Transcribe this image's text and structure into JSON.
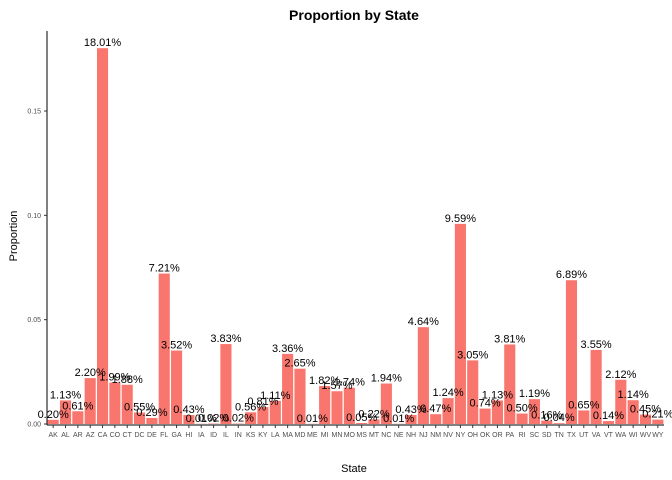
{
  "chart_data": {
    "type": "bar",
    "title": "Proportion by State",
    "xlabel": "State",
    "ylabel": "Proportion",
    "ylim": [
      0,
      0.185
    ],
    "yticks": [
      "0.00",
      "0.05",
      "0.10",
      "0.15"
    ],
    "ytick_values": [
      0,
      0.05,
      0.1,
      0.15
    ],
    "grid": false,
    "bar_color": "#F8766D",
    "categories": [
      "AK",
      "AL",
      "AR",
      "AZ",
      "CA",
      "CO",
      "CT",
      "DC",
      "DE",
      "FL",
      "GA",
      "HI",
      "IA",
      "ID",
      "IL",
      "IN",
      "KS",
      "KY",
      "LA",
      "MA",
      "MD",
      "ME",
      "MI",
      "MN",
      "MO",
      "MS",
      "MT",
      "NC",
      "NE",
      "NH",
      "NJ",
      "NM",
      "NV",
      "NY",
      "OH",
      "OK",
      "OR",
      "PA",
      "RI",
      "SC",
      "SD",
      "TN",
      "TX",
      "UT",
      "VA",
      "VT",
      "WA",
      "WI",
      "WV",
      "WY"
    ],
    "values": [
      0.002,
      0.0113,
      0.0061,
      0.022,
      0.1801,
      0.0199,
      0.0188,
      0.0055,
      0.0029,
      0.0721,
      0.0352,
      0.0043,
      0.0001,
      0.0002,
      0.0383,
      0.0002,
      0.0056,
      0.0081,
      0.0111,
      0.0336,
      0.0265,
      0.0001,
      0.0182,
      0.0157,
      0.0174,
      0.0005,
      0.0022,
      0.0194,
      0.0001,
      0.0043,
      0.0464,
      0.0047,
      0.0124,
      0.0959,
      0.0305,
      0.0074,
      0.0113,
      0.0381,
      0.005,
      0.0119,
      0.0016,
      0.0004,
      0.0689,
      0.0065,
      0.0355,
      0.0014,
      0.0212,
      0.0114,
      0.0045,
      0.0021
    ],
    "labels": [
      "0.20%",
      "1.13%",
      "0.61%",
      "2.20%",
      "18.01%",
      "1.99%",
      "1.88%",
      "0.55%",
      "0.29%",
      "7.21%",
      "3.52%",
      "0.43%",
      "0.01%",
      "0.02%",
      "3.83%",
      "0.02%",
      "0.56%",
      "0.81%",
      "1.11%",
      "3.36%",
      "2.65%",
      "0.01%",
      "1.82%",
      "1.57%",
      "1.74%",
      "0.05%",
      "0.22%",
      "1.94%",
      "0.01%",
      "0.43%",
      "4.64%",
      "0.47%",
      "1.24%",
      "9.59%",
      "3.05%",
      "0.74%",
      "1.13%",
      "3.81%",
      "0.50%",
      "1.19%",
      "0.16%",
      "0.04%",
      "6.89%",
      "0.65%",
      "3.55%",
      "0.14%",
      "2.12%",
      "1.14%",
      "0.45%",
      "0.21%"
    ]
  }
}
